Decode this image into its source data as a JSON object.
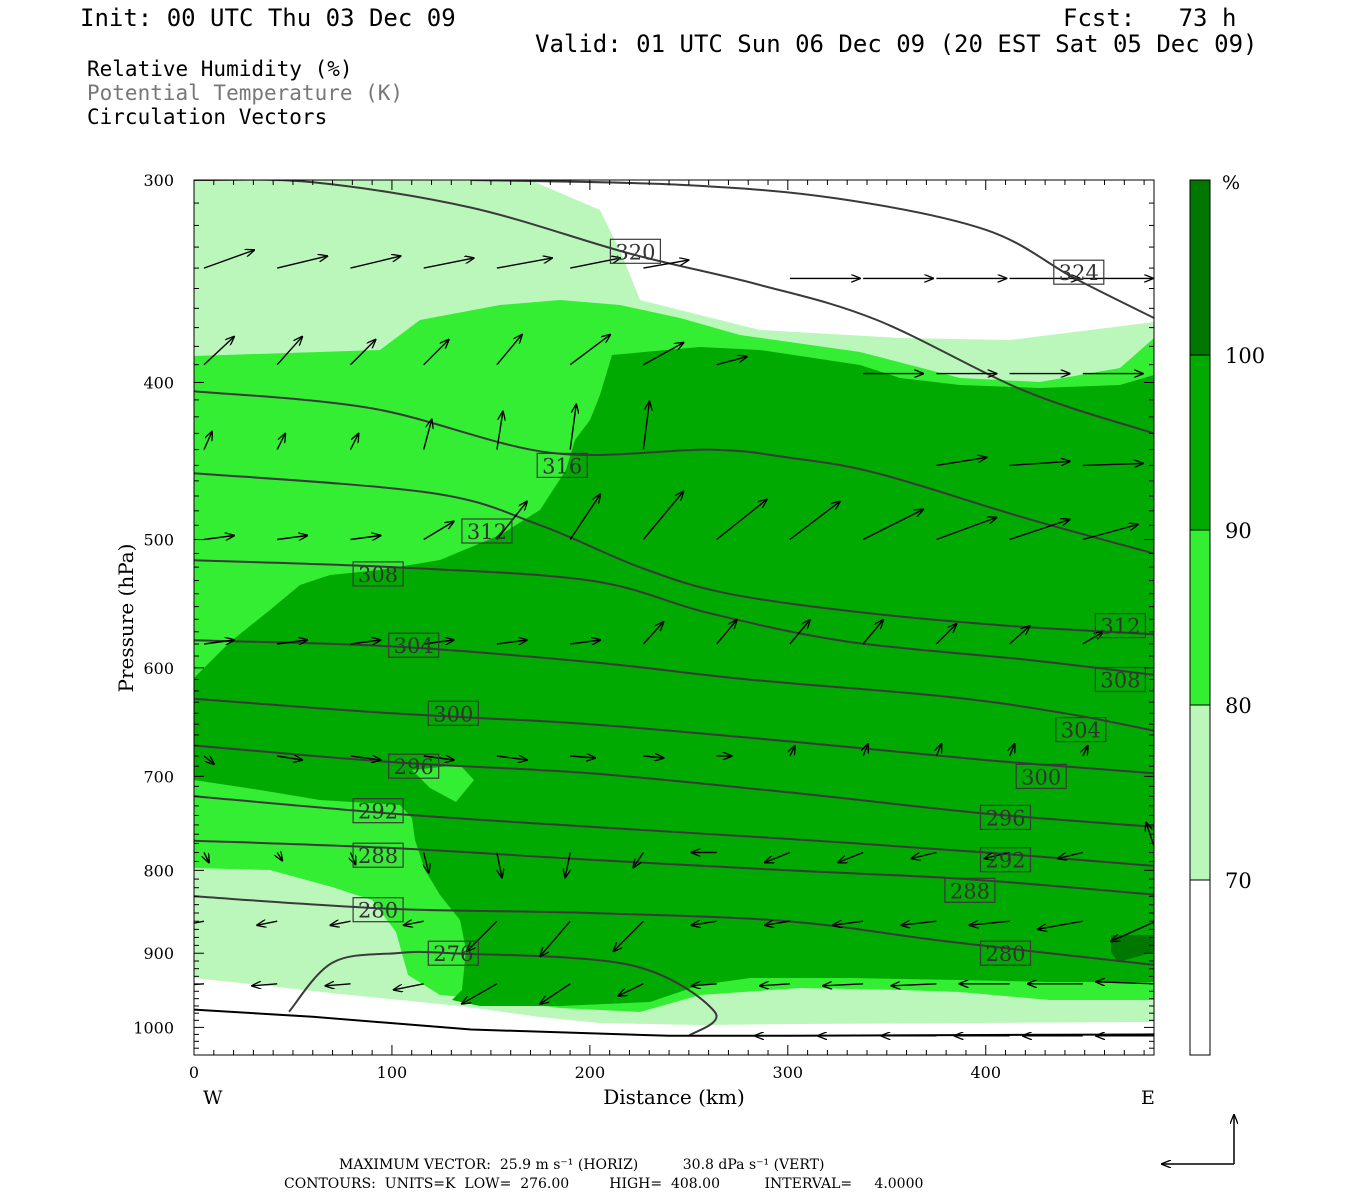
{
  "header": {
    "init": "Init: 00 UTC Thu 03 Dec 09",
    "fcst": "Fcst:   73 h",
    "valid": "Valid: 01 UTC Sun 06 Dec 09 (20 EST Sat 05 Dec 09)"
  },
  "fields": {
    "rh": "Relative Humidity (%)",
    "theta": "Potential Temperature (K)",
    "vectors": "Circulation Vectors"
  },
  "chart_data": {
    "type": "cross-section",
    "xlabel": "Distance (km)",
    "ylabel": "Pressure (hPa)",
    "xlim": [
      0,
      485
    ],
    "ylim": [
      300,
      1040
    ],
    "y_log": true,
    "x_ticks": [
      "0",
      "100",
      "200",
      "300",
      "400"
    ],
    "x_tick_values": [
      0,
      100,
      200,
      300,
      400
    ],
    "y_ticks": [
      "300",
      "400",
      "500",
      "600",
      "700",
      "800",
      "900",
      "1000"
    ],
    "y_tick_values": [
      300,
      400,
      500,
      600,
      700,
      800,
      900,
      1000
    ],
    "west_label": "W",
    "east_label": "E",
    "colorbar": {
      "unit": "%",
      "labels": [
        "70",
        "80",
        "90",
        "100"
      ],
      "levels": [
        70,
        80,
        90,
        100
      ],
      "colors": [
        "#ffffff",
        "#bbf7bb",
        "#33ee33",
        "#00aa00",
        "#007700"
      ]
    },
    "theta_contours": [
      {
        "label": "324",
        "points": [
          [
            140,
            300
          ],
          [
            245,
            302
          ],
          [
            325,
            308
          ],
          [
            400,
            322
          ],
          [
            445,
            345
          ],
          [
            485,
            365
          ]
        ],
        "label_at": [
          447,
          342
        ]
      },
      {
        "label": "320",
        "points": [
          [
            0,
            300
          ],
          [
            60,
            301
          ],
          [
            140,
            312
          ],
          [
            220,
            333
          ],
          [
            285,
            348
          ],
          [
            345,
            366
          ],
          [
            420,
            405
          ],
          [
            485,
            430
          ]
        ],
        "label_at": [
          223,
          332
        ]
      },
      {
        "label": "316",
        "points": [
          [
            0,
            405
          ],
          [
            90,
            415
          ],
          [
            180,
            442
          ],
          [
            260,
            440
          ],
          [
            300,
            445
          ],
          [
            345,
            455
          ],
          [
            420,
            485
          ],
          [
            485,
            510
          ]
        ],
        "label_at": [
          186,
          450
        ]
      },
      {
        "label": "312",
        "points": [
          [
            0,
            455
          ],
          [
            120,
            468
          ],
          [
            175,
            490
          ],
          [
            225,
            520
          ],
          [
            270,
            540
          ],
          [
            340,
            555
          ],
          [
            410,
            565
          ],
          [
            485,
            572
          ]
        ],
        "label_at": [
          148,
          494
        ]
      },
      {
        "label": "308",
        "points": [
          [
            0,
            515
          ],
          [
            100,
            520
          ],
          [
            200,
            530
          ],
          [
            260,
            555
          ],
          [
            330,
            578
          ],
          [
            420,
            593
          ],
          [
            485,
            606
          ]
        ],
        "label_at": [
          93,
          525
        ]
      },
      {
        "label": "304",
        "points": [
          [
            0,
            577
          ],
          [
            100,
            582
          ],
          [
            200,
            595
          ],
          [
            280,
            610
          ],
          [
            380,
            625
          ],
          [
            440,
            640
          ],
          [
            485,
            656
          ]
        ],
        "label_at": [
          111,
          581
        ]
      },
      {
        "label": "300",
        "points": [
          [
            0,
            627
          ],
          [
            100,
            640
          ],
          [
            200,
            650
          ],
          [
            300,
            666
          ],
          [
            400,
            684
          ],
          [
            485,
            697
          ]
        ],
        "label_at": [
          131,
          640
        ]
      },
      {
        "label": "296",
        "points": [
          [
            0,
            670
          ],
          [
            100,
            686
          ],
          [
            200,
            697
          ],
          [
            300,
            716
          ],
          [
            400,
            738
          ],
          [
            485,
            752
          ]
        ],
        "label_at": [
          111,
          690
        ]
      },
      {
        "label": "292",
        "points": [
          [
            0,
            720
          ],
          [
            100,
            738
          ],
          [
            200,
            752
          ],
          [
            300,
            765
          ],
          [
            400,
            780
          ],
          [
            485,
            795
          ]
        ],
        "label_at": [
          93,
          735
        ]
      },
      {
        "label": "288",
        "points": [
          [
            0,
            767
          ],
          [
            100,
            775
          ],
          [
            200,
            788
          ],
          [
            300,
            800
          ],
          [
            390,
            810
          ],
          [
            485,
            828
          ]
        ],
        "label_at": [
          93,
          783
        ]
      },
      {
        "label": "280",
        "points": [
          [
            0,
            830
          ],
          [
            100,
            845
          ],
          [
            200,
            850
          ],
          [
            300,
            860
          ],
          [
            380,
            885
          ],
          [
            485,
            915
          ]
        ],
        "label_at": [
          93,
          846
        ]
      },
      {
        "label": "276",
        "points": [
          [
            48,
            978
          ],
          [
            70,
            912
          ],
          [
            102,
            900
          ],
          [
            130,
            900
          ],
          [
            220,
            915
          ],
          [
            263,
            978
          ],
          [
            250,
            1012
          ]
        ],
        "label_at": [
          131,
          900
        ]
      }
    ],
    "extra_theta_labels": [
      {
        "label": "312",
        "at": [
          468,
          565
        ]
      },
      {
        "label": "308",
        "at": [
          468,
          610
        ]
      },
      {
        "label": "304",
        "at": [
          448,
          655
        ]
      },
      {
        "label": "300",
        "at": [
          428,
          700
        ]
      },
      {
        "label": "296",
        "at": [
          410,
          742
        ]
      },
      {
        "label": "292",
        "at": [
          410,
          788
        ]
      },
      {
        "label": "288",
        "at": [
          392,
          823
        ]
      },
      {
        "label": "280",
        "at": [
          410,
          900
        ]
      }
    ],
    "surface_pressure": [
      [
        0,
        975
      ],
      [
        60,
        985
      ],
      [
        140,
        1003
      ],
      [
        240,
        1012
      ],
      [
        300,
        1012
      ],
      [
        485,
        1010
      ]
    ],
    "max_vector_line": "MAXIMUM VECTOR:  25.9 m s⁻¹ (HORIZ)          30.8 dPa s⁻¹ (VERT)",
    "contours_line": "CONTOURS:  UNITS=K  LOW=  276.00         HIGH=  408.00          INTERVAL=     4.0000"
  }
}
